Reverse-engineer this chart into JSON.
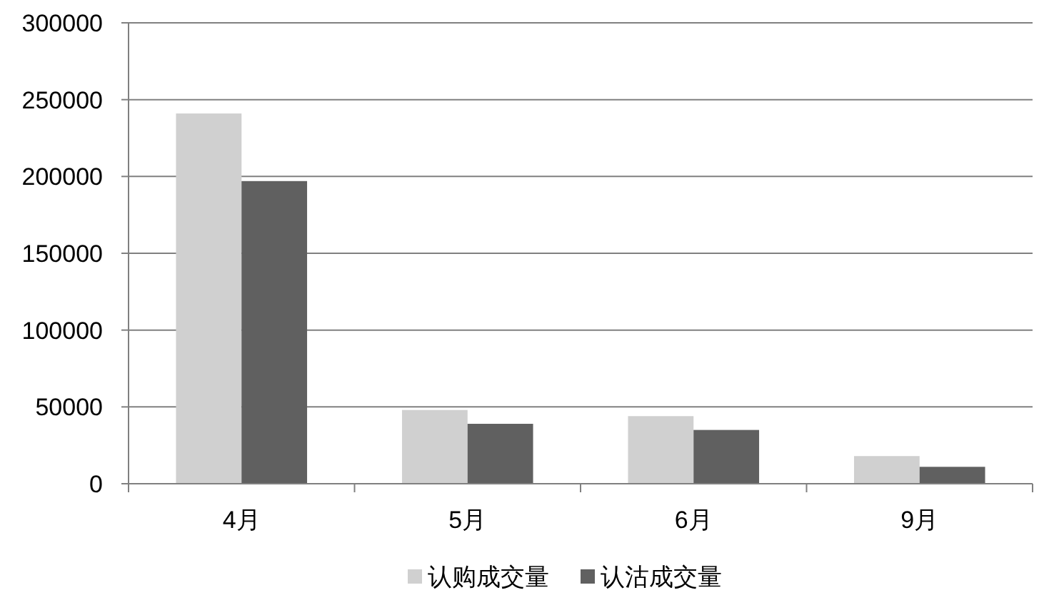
{
  "chart_data": {
    "type": "bar",
    "categories": [
      "4月",
      "5月",
      "6月",
      "9月"
    ],
    "series": [
      {
        "name": "认购成交量",
        "color": "#d0d0d0",
        "values": [
          241000,
          48000,
          44000,
          18000
        ]
      },
      {
        "name": "认沽成交量",
        "color": "#606060",
        "values": [
          197000,
          39000,
          35000,
          11000
        ]
      }
    ],
    "ylim": [
      0,
      300000
    ],
    "yticks": [
      0,
      50000,
      100000,
      150000,
      200000,
      250000,
      300000
    ],
    "grid": "y",
    "legend": "bottom"
  }
}
